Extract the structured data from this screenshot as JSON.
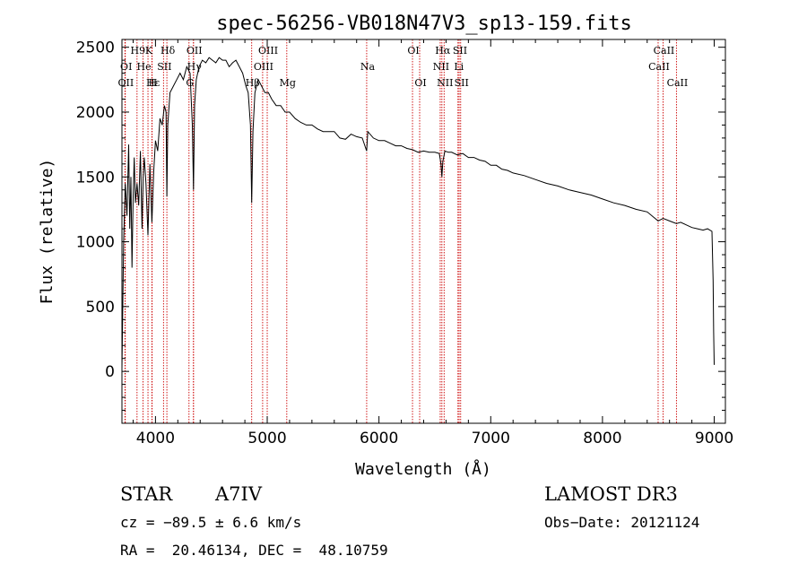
{
  "chart_data": {
    "type": "line",
    "title": "spec-56256-VB018N47V3_sp13-159.fits",
    "xlabel": "Wavelength (Å)",
    "ylabel": "Flux (relative)",
    "xlim": [
      3700,
      9100
    ],
    "ylim": [
      -400,
      2560
    ],
    "xticks": [
      4000,
      5000,
      6000,
      7000,
      8000,
      9000
    ],
    "yticks": [
      0,
      500,
      1000,
      1500,
      2000,
      2500
    ],
    "grid": false,
    "series": [
      {
        "name": "flux",
        "x": [
          3700,
          3715,
          3730,
          3745,
          3760,
          3770,
          3780,
          3790,
          3800,
          3810,
          3820,
          3835,
          3850,
          3865,
          3880,
          3890,
          3900,
          3915,
          3933,
          3950,
          3968,
          3985,
          4000,
          4020,
          4040,
          4060,
          4080,
          4095,
          4102,
          4110,
          4130,
          4160,
          4190,
          4220,
          4250,
          4280,
          4310,
          4330,
          4340,
          4350,
          4365,
          4390,
          4420,
          4450,
          4480,
          4510,
          4540,
          4570,
          4600,
          4630,
          4660,
          4690,
          4720,
          4750,
          4780,
          4810,
          4830,
          4850,
          4861,
          4872,
          4890,
          4920,
          4950,
          4980,
          5010,
          5040,
          5080,
          5120,
          5160,
          5200,
          5250,
          5300,
          5350,
          5400,
          5450,
          5500,
          5550,
          5600,
          5650,
          5700,
          5750,
          5800,
          5850,
          5890,
          5900,
          5950,
          6000,
          6050,
          6100,
          6150,
          6200,
          6250,
          6300,
          6350,
          6400,
          6450,
          6500,
          6540,
          6555,
          6563,
          6572,
          6590,
          6620,
          6650,
          6700,
          6750,
          6800,
          6850,
          6900,
          6950,
          7000,
          7050,
          7100,
          7150,
          7200,
          7300,
          7400,
          7500,
          7600,
          7700,
          7800,
          7900,
          8000,
          8100,
          8200,
          8300,
          8400,
          8498,
          8542,
          8600,
          8662,
          8700,
          8750,
          8800,
          8850,
          8900,
          8940,
          8960,
          8980,
          8990,
          8995,
          9000
        ],
        "y": [
          20,
          1000,
          1450,
          1200,
          1750,
          1100,
          1500,
          800,
          1350,
          1650,
          1300,
          1450,
          1280,
          1700,
          1100,
          1500,
          1650,
          1450,
          1050,
          1600,
          1150,
          1550,
          1780,
          1700,
          1950,
          1900,
          2050,
          2000,
          1350,
          1900,
          2150,
          2200,
          2250,
          2300,
          2250,
          2350,
          2300,
          1900,
          1400,
          2050,
          2250,
          2350,
          2400,
          2380,
          2420,
          2400,
          2380,
          2420,
          2400,
          2400,
          2350,
          2380,
          2400,
          2350,
          2300,
          2200,
          2150,
          1900,
          1300,
          1850,
          2150,
          2250,
          2200,
          2150,
          2150,
          2100,
          2050,
          2050,
          2000,
          2000,
          1950,
          1920,
          1900,
          1900,
          1870,
          1850,
          1850,
          1850,
          1800,
          1790,
          1830,
          1810,
          1800,
          1700,
          1850,
          1800,
          1780,
          1780,
          1760,
          1740,
          1740,
          1720,
          1710,
          1690,
          1700,
          1690,
          1690,
          1680,
          1600,
          1500,
          1620,
          1700,
          1690,
          1690,
          1670,
          1680,
          1650,
          1650,
          1630,
          1620,
          1590,
          1590,
          1560,
          1550,
          1530,
          1510,
          1480,
          1450,
          1430,
          1400,
          1380,
          1360,
          1330,
          1300,
          1280,
          1250,
          1230,
          1160,
          1180,
          1160,
          1140,
          1150,
          1130,
          1110,
          1100,
          1090,
          1100,
          1090,
          1080,
          700,
          300,
          50
        ]
      }
    ],
    "lines": {
      "top": [
        {
          "label": "H9",
          "x": 3835
        },
        {
          "label": "K",
          "x": 3933
        },
        {
          "label": "Hδ",
          "x": 4102
        },
        {
          "label": "OII",
          "x": 4340
        },
        {
          "label": "OIII",
          "x": 5000
        },
        {
          "label": "OI",
          "x": 6300
        },
        {
          "label": "Hα",
          "x": 6563
        },
        {
          "label": "SII",
          "x": 6717
        },
        {
          "label": "CaII",
          "x": 8542
        }
      ],
      "middle": [
        {
          "label": "OI",
          "x": 3730
        },
        {
          "label": "He",
          "x": 3889
        },
        {
          "label": "SII",
          "x": 4072
        },
        {
          "label": "Hγ",
          "x": 4340
        },
        {
          "label": "OIII",
          "x": 4959
        },
        {
          "label": "Na",
          "x": 5890
        },
        {
          "label": "NII",
          "x": 6548
        },
        {
          "label": "Li",
          "x": 6707
        },
        {
          "label": "CaII",
          "x": 8498
        }
      ],
      "bottom": [
        {
          "label": "OII",
          "x": 3727
        },
        {
          "label": "Hε",
          "x": 3970
        },
        {
          "label": "H",
          "x": 3968
        },
        {
          "label": "G",
          "x": 4300
        },
        {
          "label": "Hβ",
          "x": 4861
        },
        {
          "label": "Mg",
          "x": 5175
        },
        {
          "label": "OI",
          "x": 6364
        },
        {
          "label": "NII",
          "x": 6583
        },
        {
          "label": "SII",
          "x": 6731
        },
        {
          "label": "CaII",
          "x": 8662
        }
      ]
    }
  },
  "info": {
    "object_class": "STAR",
    "subclass": "A7IV",
    "survey": "LAMOST DR3",
    "cz": "cz = −89.5 ± 6.6 km/s",
    "obs_date": "Obs−Date: 20121124",
    "coords": "RA =  20.46134, DEC =  48.10759"
  }
}
